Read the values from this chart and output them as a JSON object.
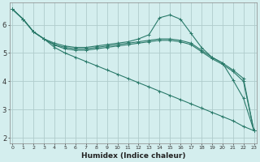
{
  "xlabel": "Humidex (Indice chaleur)",
  "background_color": "#d4eeee",
  "grid_color": "#b0cccc",
  "line_color": "#2a7a6a",
  "x_ticks": [
    0,
    1,
    2,
    3,
    4,
    5,
    6,
    7,
    8,
    9,
    10,
    11,
    12,
    13,
    14,
    15,
    16,
    17,
    18,
    19,
    20,
    21,
    22,
    23
  ],
  "ylim": [
    1.8,
    6.8
  ],
  "xlim": [
    -0.3,
    23.3
  ],
  "series": [
    {
      "x": [
        0,
        1,
        2,
        3,
        4,
        5,
        6,
        7,
        8,
        9,
        10,
        11,
        12,
        13,
        14,
        15,
        16,
        17,
        18,
        19,
        20,
        21,
        22,
        23
      ],
      "y": [
        6.55,
        6.2,
        5.75,
        5.5,
        5.35,
        5.25,
        5.2,
        5.2,
        5.25,
        5.3,
        5.35,
        5.4,
        5.5,
        5.65,
        6.25,
        6.35,
        6.2,
        5.7,
        5.2,
        4.85,
        4.65,
        4.05,
        3.4,
        2.25
      ]
    },
    {
      "x": [
        0,
        1,
        2,
        3,
        4,
        5,
        6,
        7,
        8,
        9,
        10,
        11,
        12,
        13,
        14,
        15,
        16,
        17,
        18,
        19,
        20,
        21,
        22,
        23
      ],
      "y": [
        6.55,
        6.2,
        5.75,
        5.5,
        5.3,
        5.2,
        5.15,
        5.15,
        5.2,
        5.25,
        5.3,
        5.35,
        5.4,
        5.45,
        5.5,
        5.5,
        5.45,
        5.35,
        5.1,
        4.85,
        4.65,
        4.4,
        4.1,
        2.25
      ]
    },
    {
      "x": [
        0,
        1,
        2,
        3,
        4,
        5,
        6,
        7,
        8,
        9,
        10,
        11,
        12,
        13,
        14,
        15,
        16,
        17,
        18,
        19,
        20,
        21,
        22,
        23
      ],
      "y": [
        6.55,
        6.2,
        5.75,
        5.5,
        5.28,
        5.15,
        5.1,
        5.1,
        5.15,
        5.2,
        5.25,
        5.3,
        5.35,
        5.4,
        5.45,
        5.45,
        5.4,
        5.3,
        5.05,
        4.8,
        4.6,
        4.35,
        4.0,
        2.25
      ]
    },
    {
      "x": [
        0,
        1,
        2,
        3,
        4,
        5,
        6,
        7,
        8,
        9,
        10,
        11,
        12,
        13,
        14,
        15,
        16,
        17,
        18,
        19,
        20,
        21,
        22,
        23
      ],
      "y": [
        6.55,
        6.2,
        5.75,
        5.5,
        5.2,
        5.0,
        4.85,
        4.7,
        4.55,
        4.4,
        4.25,
        4.1,
        3.95,
        3.8,
        3.65,
        3.5,
        3.35,
        3.2,
        3.05,
        2.9,
        2.75,
        2.6,
        2.4,
        2.25
      ]
    }
  ]
}
